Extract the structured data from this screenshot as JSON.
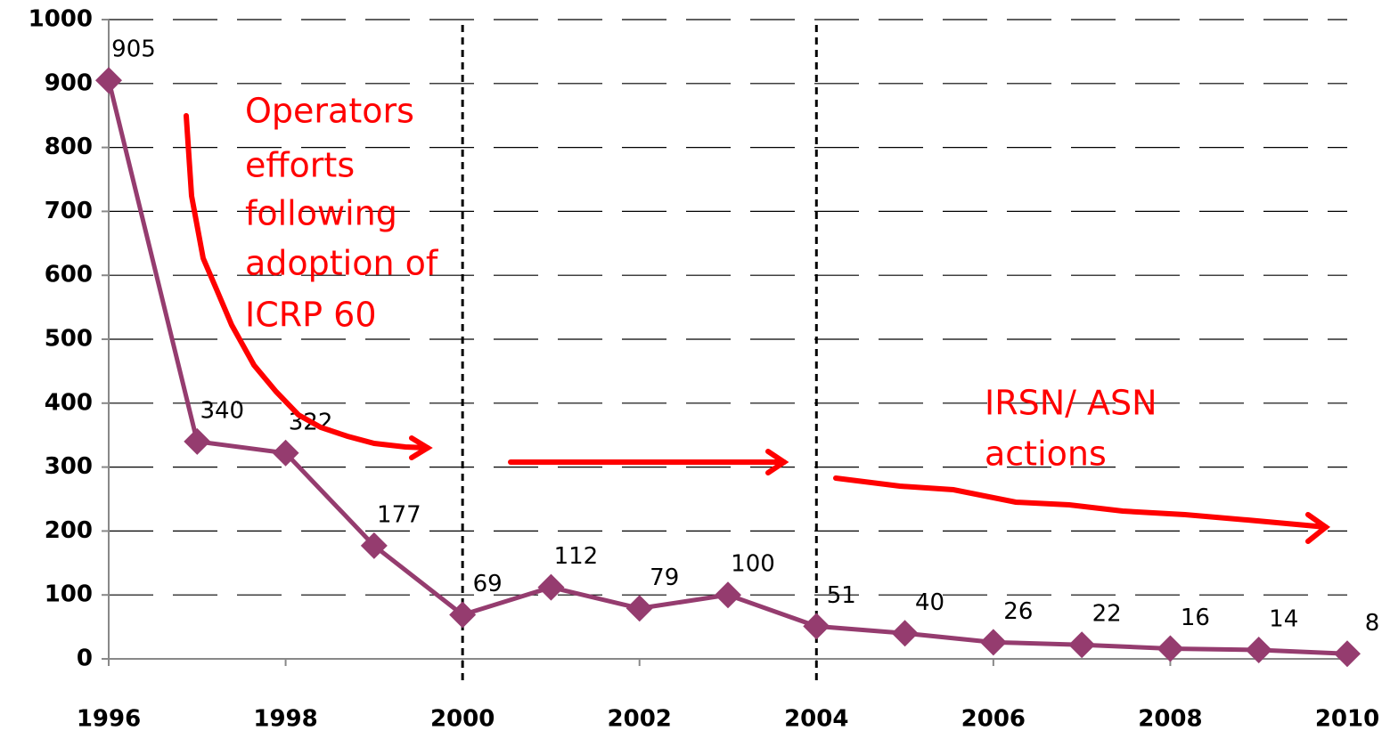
{
  "chart_data": {
    "type": "line",
    "x": [
      1996,
      1997,
      1998,
      1999,
      2000,
      2001,
      2002,
      2003,
      2004,
      2005,
      2006,
      2007,
      2008,
      2009,
      2010
    ],
    "series": [
      {
        "color": "#953c6f",
        "values": [
          905,
          340,
          322,
          177,
          69,
          112,
          79,
          100,
          51,
          40,
          26,
          22,
          16,
          14,
          8
        ]
      }
    ],
    "xlim": [
      1996,
      2010
    ],
    "xticks": [
      1996,
      1998,
      2000,
      2002,
      2004,
      2006,
      2008,
      2010
    ],
    "ylim": [
      0,
      1000
    ],
    "yticks": [
      0,
      100,
      200,
      300,
      400,
      500,
      600,
      700,
      800,
      900,
      1000
    ],
    "grid": true,
    "reference_lines": [
      2000,
      2004
    ],
    "annotations": [
      "Operators",
      "efforts",
      "following",
      "adoption of",
      "ICRP 60",
      "IRSN/ ASN",
      "actions"
    ]
  }
}
